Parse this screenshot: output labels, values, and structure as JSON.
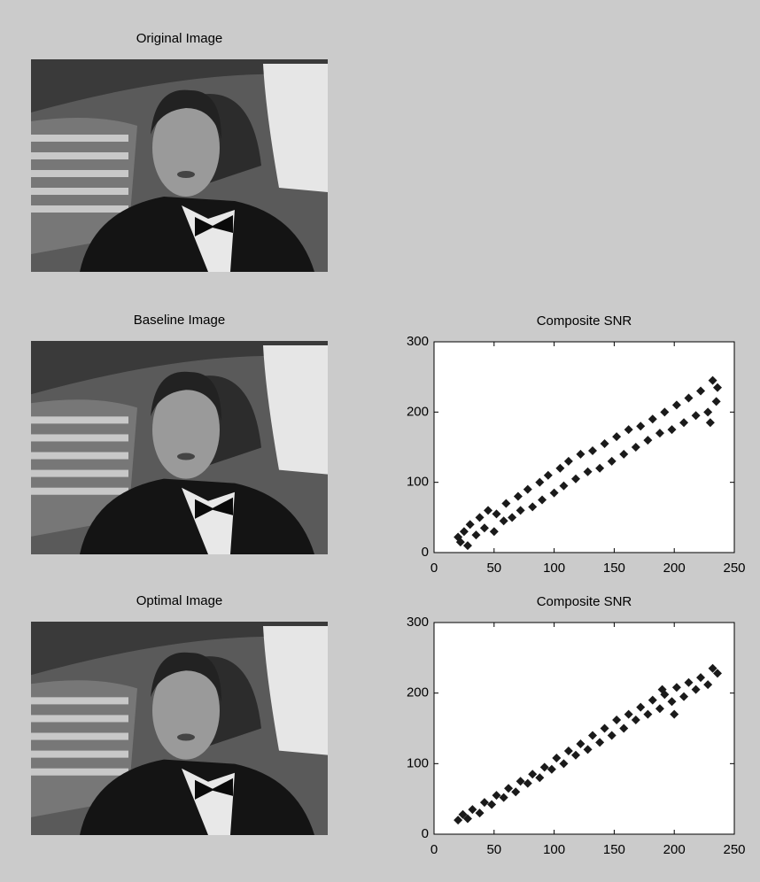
{
  "chart_data": [
    {
      "type": "image",
      "title": "Original Image"
    },
    {
      "type": "image",
      "title": "Baseline Image"
    },
    {
      "type": "scatter",
      "title": "Composite SNR",
      "color": "#1a1a1a",
      "x": [
        20,
        22,
        25,
        28,
        30,
        35,
        38,
        42,
        45,
        50,
        52,
        58,
        60,
        65,
        70,
        72,
        78,
        82,
        88,
        90,
        95,
        100,
        105,
        108,
        112,
        118,
        122,
        128,
        132,
        138,
        142,
        148,
        152,
        158,
        162,
        168,
        172,
        178,
        182,
        188,
        192,
        198,
        202,
        208,
        212,
        218,
        222,
        228,
        232,
        235,
        236,
        230
      ],
      "values": [
        22,
        15,
        30,
        10,
        40,
        25,
        50,
        35,
        60,
        30,
        55,
        45,
        70,
        50,
        80,
        60,
        90,
        65,
        100,
        75,
        110,
        85,
        120,
        95,
        130,
        105,
        140,
        115,
        145,
        120,
        155,
        130,
        165,
        140,
        175,
        150,
        180,
        160,
        190,
        170,
        200,
        175,
        210,
        185,
        220,
        195,
        230,
        200,
        245,
        215,
        235,
        185
      ],
      "xlim": [
        0,
        250
      ],
      "ylim": [
        0,
        300
      ],
      "xticks": [
        0,
        50,
        100,
        150,
        200,
        250
      ],
      "yticks": [
        0,
        100,
        200,
        300
      ]
    },
    {
      "type": "image",
      "title": "Optimal Image"
    },
    {
      "type": "scatter",
      "title": "Composite SNR",
      "color": "#1a1a1a",
      "x": [
        20,
        24,
        28,
        32,
        38,
        42,
        48,
        52,
        58,
        62,
        68,
        72,
        78,
        82,
        88,
        92,
        98,
        102,
        108,
        112,
        118,
        122,
        128,
        132,
        138,
        142,
        148,
        152,
        158,
        162,
        168,
        172,
        178,
        182,
        188,
        192,
        198,
        202,
        208,
        212,
        218,
        222,
        228,
        232,
        236,
        200,
        190
      ],
      "values": [
        20,
        28,
        22,
        35,
        30,
        45,
        42,
        55,
        52,
        65,
        60,
        75,
        72,
        85,
        80,
        95,
        92,
        108,
        100,
        118,
        112,
        128,
        120,
        140,
        130,
        150,
        140,
        162,
        150,
        170,
        162,
        180,
        170,
        190,
        178,
        198,
        188,
        208,
        195,
        215,
        205,
        222,
        212,
        235,
        228,
        170,
        205
      ],
      "xlim": [
        0,
        250
      ],
      "ylim": [
        0,
        300
      ],
      "xticks": [
        0,
        50,
        100,
        150,
        200,
        250
      ],
      "yticks": [
        0,
        100,
        200,
        300
      ]
    }
  ]
}
